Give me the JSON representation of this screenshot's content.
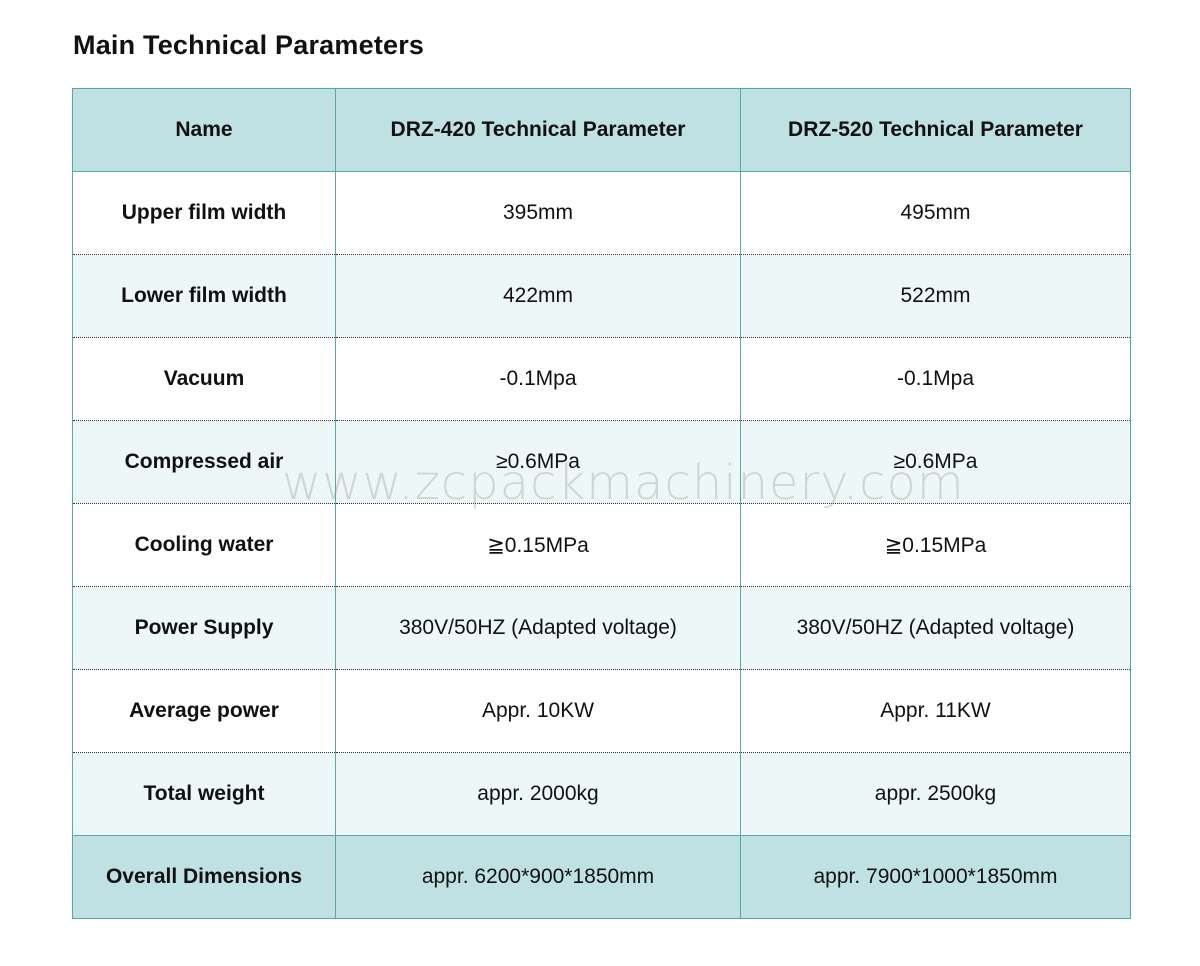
{
  "title": "Main Technical Parameters",
  "table": {
    "headers": [
      "Name",
      "DRZ-420 Technical Parameter",
      "DRZ-520 Technical Parameter"
    ],
    "rows": [
      [
        "Upper film width",
        "395mm",
        "495mm"
      ],
      [
        "Lower film width",
        "422mm",
        "522mm"
      ],
      [
        "Vacuum",
        "-0.1Mpa",
        "-0.1Mpa"
      ],
      [
        "Compressed air",
        "≥0.6MPa",
        "≥0.6MPa"
      ],
      [
        "Cooling water",
        "≧0.15MPa",
        "≧0.15MPa"
      ],
      [
        "Power Supply",
        "380V/50HZ (Adapted voltage)",
        "380V/50HZ (Adapted voltage)"
      ],
      [
        "Average power",
        "Appr. 10KW",
        "Appr. 11KW"
      ],
      [
        "Total weight",
        "appr. 2000kg",
        "appr. 2500kg"
      ],
      [
        "Overall Dimensions",
        "appr. 6200*900*1850mm",
        "appr. 7900*1000*1850mm"
      ]
    ]
  },
  "watermark": "www.zcpackmachinery.com",
  "colors": {
    "header_bg": "#bfe1e3",
    "alt_row_bg": "#eef7f7",
    "border": "#5aa7a5"
  }
}
